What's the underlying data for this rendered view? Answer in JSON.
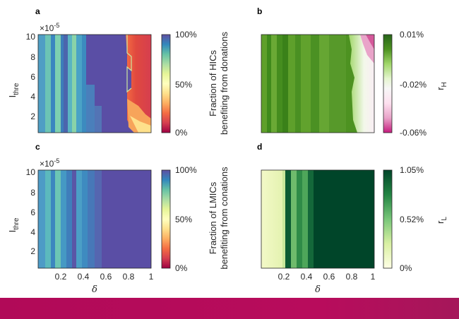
{
  "chart_data": [
    {
      "panel": "a",
      "type": "heatmap",
      "xlabel": "",
      "ylabel": "I_thre",
      "y_exponent": "×10^-5",
      "x_ticks": [],
      "y_ticks": [
        "2",
        "4",
        "6",
        "8",
        "10"
      ],
      "colorbar": {
        "ticks": [
          "100%",
          "50%",
          "0%"
        ],
        "label_lines": [
          "Fraction of HICs",
          "benefiting from donations"
        ],
        "colormap": "spectral"
      },
      "description_values": {
        "x_range": [
          0,
          1
        ],
        "y_range": [
          0,
          10
        ]
      }
    },
    {
      "panel": "b",
      "type": "heatmap",
      "xlabel": "",
      "ylabel": "",
      "x_ticks": [],
      "y_ticks": [],
      "colorbar": {
        "ticks": [
          "0.01%",
          "-0.02%",
          "-0.06%"
        ],
        "label": "r_H",
        "colormap": "pink-green"
      }
    },
    {
      "panel": "c",
      "type": "heatmap",
      "xlabel": "δ",
      "ylabel": "I_thre",
      "y_exponent": "×10^-5",
      "x_ticks": [
        "0.2",
        "0.4",
        "0.6",
        "0.8",
        "1"
      ],
      "y_ticks": [
        "2",
        "4",
        "6",
        "8",
        "10"
      ],
      "colorbar": {
        "ticks": [
          "100%",
          "50%",
          "0%"
        ],
        "label_lines": [
          "Fraction of LMICs",
          "benefiting from conations"
        ],
        "colormap": "spectral"
      }
    },
    {
      "panel": "d",
      "type": "heatmap",
      "xlabel": "δ",
      "ylabel": "",
      "x_ticks": [
        "0.2",
        "0.4",
        "0.6",
        "0.8",
        "1"
      ],
      "y_ticks": [],
      "colorbar": {
        "ticks": [
          "1.05%",
          "0.52%",
          "0%"
        ],
        "label": "r_L",
        "colormap": "yellow-green"
      }
    }
  ],
  "labels": {
    "a": "a",
    "b": "b",
    "c": "c",
    "d": "d",
    "exp": "×10",
    "exp_pow": "-5",
    "ylab_main": "I",
    "ylab_sub": "thre",
    "xlab": "δ",
    "cbA_line1": "Fraction of HICs",
    "cbA_line2": "benefiting from donations",
    "cbC_line1": "Fraction of LMICs",
    "cbC_line2": "benefiting from conations",
    "cbB_main": "r",
    "cbB_sub": "H",
    "cbD_main": "r",
    "cbD_sub": "L",
    "cbA_t1": "100%",
    "cbA_t2": "50%",
    "cbA_t3": "0%",
    "cbC_t1": "100%",
    "cbC_t2": "50%",
    "cbC_t3": "0%",
    "cbB_t1": "0.01%",
    "cbB_t2": "-0.02%",
    "cbB_t3": "-0.06%",
    "cbD_t1": "1.05%",
    "cbD_t2": "0.52%",
    "cbD_t3": "0%",
    "y2": "2",
    "y4": "4",
    "y6": "6",
    "y8": "8",
    "y10": "10",
    "x02": "0.2",
    "x04": "0.4",
    "x06": "0.6",
    "x08": "0.8",
    "x1": "1"
  },
  "colors": {
    "purple_plateau": "#5a4ea5",
    "dark_green": "#00542e",
    "footer": "#b10a58"
  }
}
